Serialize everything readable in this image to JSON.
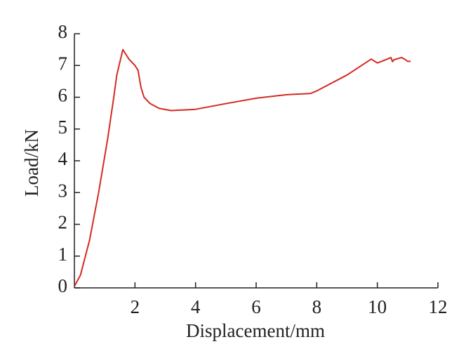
{
  "chart_data": {
    "type": "line",
    "xlabel": "Displacement/mm",
    "ylabel": "Load/kN",
    "x": [
      0,
      0.2,
      0.5,
      0.8,
      1.1,
      1.3,
      1.4,
      1.6,
      1.8,
      2.0,
      2.1,
      2.2,
      2.3,
      2.5,
      2.8,
      3.2,
      4.0,
      5.0,
      6.0,
      7.0,
      7.8,
      8.0,
      9.0,
      9.8,
      10.0,
      10.2,
      10.45,
      10.5,
      10.55,
      10.8,
      10.9,
      11.0,
      11.1
    ],
    "values": [
      0.05,
      0.4,
      1.5,
      3.0,
      4.7,
      6.0,
      6.7,
      7.5,
      7.2,
      7.0,
      6.85,
      6.3,
      6.0,
      5.8,
      5.65,
      5.58,
      5.62,
      5.8,
      5.97,
      6.08,
      6.12,
      6.2,
      6.7,
      7.2,
      7.08,
      7.15,
      7.25,
      7.12,
      7.18,
      7.25,
      7.2,
      7.13,
      7.13
    ],
    "color": "#d42a22",
    "xlim": [
      0,
      12
    ],
    "xticks": [
      2,
      4,
      6,
      8,
      10,
      12
    ],
    "ylim": [
      0,
      8
    ],
    "yticks": [
      0,
      1,
      2,
      3,
      4,
      5,
      6,
      7,
      8
    ]
  }
}
